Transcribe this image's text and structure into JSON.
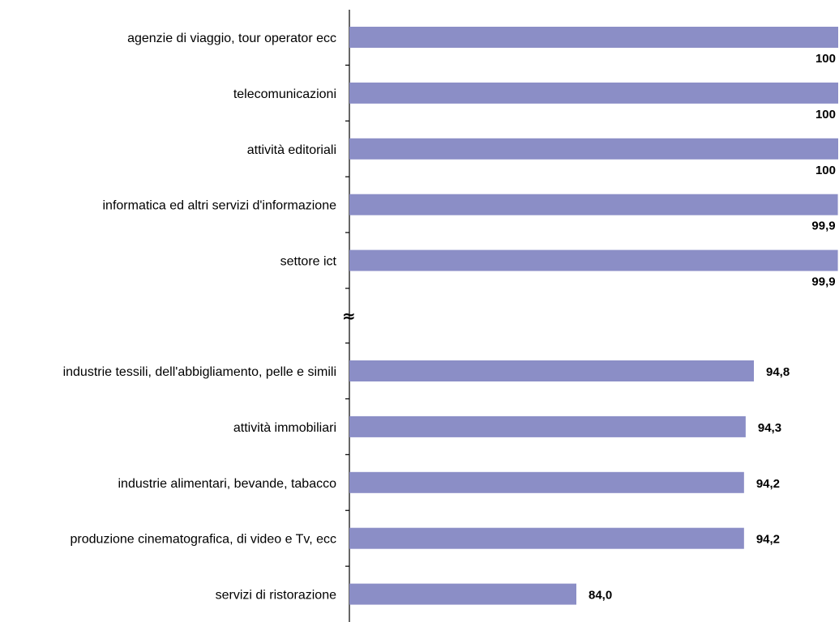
{
  "chart_data": {
    "type": "bar",
    "orientation": "horizontal",
    "categories": [
      "agenzie di viaggio, tour operator ecc",
      "telecomunicazioni",
      "attività editoriali",
      "informatica ed altri servizi d'informazione",
      "settore ict",
      "industrie tessili, dell'abbigliamento, pelle e simili",
      "attività immobiliari",
      "industrie alimentari, bevande, tabacco",
      "produzione cinematografica, di video e Tv,  ecc",
      "servizi di ristorazione"
    ],
    "values": [
      100,
      100,
      100,
      99.9,
      99.9,
      94.8,
      94.3,
      94.2,
      94.2,
      84.0
    ],
    "value_labels": [
      "100",
      "100",
      "100",
      "99,9",
      "99,9",
      "94,8",
      "94,3",
      "94,2",
      "94,2",
      "84,0"
    ],
    "axis_break": {
      "after_index": 4,
      "symbol": "≈"
    },
    "bar_color": "#8B8EC6",
    "grid": false,
    "legend": "none"
  }
}
